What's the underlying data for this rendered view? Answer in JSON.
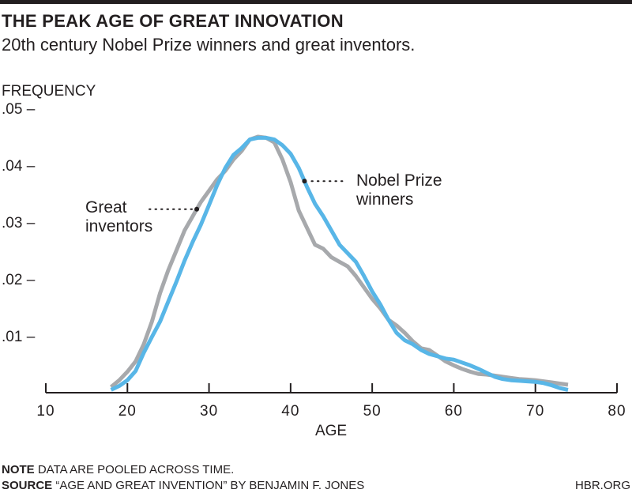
{
  "header": {
    "title": "THE PEAK AGE OF GREAT INNOVATION",
    "subtitle": "20th century Nobel Prize winners and great inventors."
  },
  "footer": {
    "note_label": "NOTE",
    "note_text": "DATA ARE POOLED ACROSS TIME.",
    "source_label": "SOURCE",
    "source_text": "“AGE AND GREAT INVENTION” BY BENJAMIN F. JONES",
    "credit": "HBR.ORG"
  },
  "colors": {
    "inventors": "#a7a9ac",
    "nobel": "#58b6e7",
    "axis": "#231f20",
    "topbar": "#231f20"
  },
  "chart_data": {
    "type": "line",
    "title": "THE PEAK AGE OF GREAT INNOVATION",
    "subtitle": "20th century Nobel Prize winners and great inventors.",
    "xlabel": "AGE",
    "ylabel": "FREQUENCY",
    "xlim": [
      10,
      80
    ],
    "ylim": [
      0,
      0.05
    ],
    "x_ticks": [
      10,
      20,
      30,
      40,
      50,
      60,
      70,
      80
    ],
    "x_tick_labels": [
      "10",
      "20",
      "30",
      "40",
      "50",
      "60",
      "70",
      "80"
    ],
    "y_ticks": [
      0.01,
      0.02,
      0.03,
      0.04,
      0.05
    ],
    "y_tick_labels": [
      ".01 –",
      ".02 –",
      ".03 –",
      ".04 –",
      ".05 –"
    ],
    "grid": false,
    "legend": "inline-annotations",
    "x": [
      18,
      19,
      20,
      21,
      22,
      23,
      24,
      25,
      26,
      27,
      28,
      29,
      30,
      31,
      32,
      33,
      34,
      35,
      36,
      37,
      38,
      39,
      40,
      41,
      42,
      43,
      44,
      45,
      46,
      47,
      48,
      49,
      50,
      51,
      52,
      53,
      54,
      55,
      56,
      57,
      58,
      59,
      60,
      61,
      62,
      63,
      64,
      65,
      66,
      67,
      68,
      69,
      70,
      71,
      72,
      73,
      74
    ],
    "series": [
      {
        "name": "Great inventors",
        "values": [
          0.001,
          0.0022,
          0.0037,
          0.0055,
          0.0085,
          0.0125,
          0.0175,
          0.0215,
          0.025,
          0.0285,
          0.031,
          0.0335,
          0.0355,
          0.0375,
          0.039,
          0.041,
          0.0425,
          0.0445,
          0.045,
          0.0448,
          0.044,
          0.041,
          0.037,
          0.032,
          0.029,
          0.026,
          0.0253,
          0.0238,
          0.023,
          0.0222,
          0.0205,
          0.0185,
          0.0165,
          0.0148,
          0.0128,
          0.0118,
          0.0105,
          0.009,
          0.0078,
          0.0075,
          0.0065,
          0.0055,
          0.0048,
          0.0042,
          0.0037,
          0.0033,
          0.0032,
          0.003,
          0.0028,
          0.0026,
          0.0024,
          0.0023,
          0.0022,
          0.002,
          0.0018,
          0.0016,
          0.0014
        ]
      },
      {
        "name": "Nobel Prize winners",
        "values": [
          0.0005,
          0.0012,
          0.0022,
          0.0038,
          0.007,
          0.0098,
          0.0125,
          0.016,
          0.0195,
          0.0232,
          0.0265,
          0.0295,
          0.033,
          0.0365,
          0.0395,
          0.0418,
          0.043,
          0.0445,
          0.0448,
          0.0448,
          0.0445,
          0.0435,
          0.042,
          0.0395,
          0.0362,
          0.0332,
          0.031,
          0.0285,
          0.026,
          0.0245,
          0.023,
          0.0205,
          0.0178,
          0.0155,
          0.0128,
          0.0105,
          0.0092,
          0.0085,
          0.0075,
          0.0068,
          0.0064,
          0.006,
          0.0058,
          0.0053,
          0.0048,
          0.0042,
          0.0035,
          0.0028,
          0.0024,
          0.0022,
          0.0021,
          0.002,
          0.0019,
          0.0017,
          0.0013,
          0.0008,
          0.0005
        ]
      }
    ],
    "annotations": [
      {
        "text_line1": "Great",
        "text_line2": "inventors",
        "series": "Great inventors",
        "at_age": 28.5
      },
      {
        "text_line1": "Nobel Prize",
        "text_line2": "winners",
        "series": "Nobel Prize winners",
        "at_age": 41.7
      }
    ]
  }
}
